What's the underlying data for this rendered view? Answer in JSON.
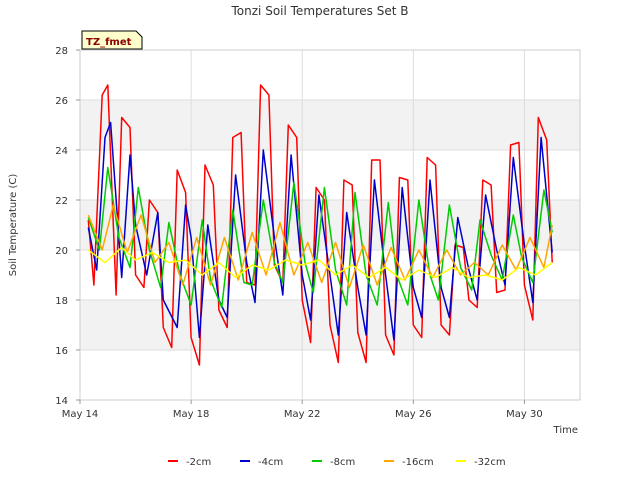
{
  "chart_data": {
    "type": "line",
    "title": "Tonzi Soil Temperatures Set B",
    "xlabel": "Time",
    "ylabel": "Soil Temperature (C)",
    "badge": "TZ_fmet",
    "x_ticks": [
      "May 14",
      "May 18",
      "May 22",
      "May 26",
      "May 30"
    ],
    "x_tick_days": [
      14,
      18,
      22,
      26,
      30
    ],
    "xlim": [
      14,
      32
    ],
    "ylim": [
      14,
      28
    ],
    "y_ticks": [
      14,
      16,
      18,
      20,
      22,
      24,
      26,
      28
    ],
    "y_tick_labels": [
      "14",
      "16",
      "18",
      "20",
      "22",
      "24",
      "26",
      "28"
    ],
    "grid": true,
    "legend_position": "bottom",
    "series": [
      {
        "name": "-2cm",
        "color": "#ff0000",
        "x": [
          14.3,
          14.5,
          14.8,
          15.0,
          15.3,
          15.5,
          15.8,
          16.0,
          16.3,
          16.5,
          16.8,
          17.0,
          17.3,
          17.5,
          17.8,
          18.0,
          18.3,
          18.5,
          18.8,
          19.0,
          19.3,
          19.5,
          19.8,
          20.0,
          20.3,
          20.5,
          20.8,
          21.0,
          21.3,
          21.5,
          21.8,
          22.0,
          22.3,
          22.5,
          22.8,
          23.0,
          23.3,
          23.5,
          23.8,
          24.0,
          24.3,
          24.5,
          24.8,
          25.0,
          25.3,
          25.5,
          25.8,
          26.0,
          26.3,
          26.5,
          26.8,
          27.0,
          27.3,
          27.5,
          27.8,
          28.0,
          28.3,
          28.5,
          28.8,
          29.0,
          29.3,
          29.5,
          29.8,
          30.0,
          30.3,
          30.5,
          30.8,
          31.0
        ],
        "y": [
          21.2,
          18.6,
          26.2,
          26.6,
          18.2,
          25.3,
          24.9,
          19.0,
          18.5,
          22.0,
          21.5,
          16.9,
          16.1,
          23.2,
          22.3,
          16.5,
          15.4,
          23.4,
          22.6,
          17.6,
          16.9,
          24.5,
          24.7,
          18.7,
          18.6,
          26.6,
          26.2,
          19.4,
          18.7,
          25.0,
          24.5,
          18.0,
          16.3,
          22.5,
          22.0,
          17.0,
          15.5,
          22.8,
          22.6,
          16.7,
          15.5,
          23.6,
          23.6,
          16.6,
          15.8,
          22.9,
          22.8,
          17.0,
          16.5,
          23.7,
          23.4,
          17.0,
          16.6,
          20.2,
          20.1,
          18.0,
          17.7,
          22.8,
          22.6,
          18.3,
          18.4,
          24.2,
          24.3,
          18.6,
          17.2,
          25.3,
          24.4,
          19.5
        ]
      },
      {
        "name": "-4cm",
        "color": "#0000cc",
        "x": [
          14.3,
          14.6,
          14.9,
          15.1,
          15.5,
          15.8,
          16.0,
          16.4,
          16.8,
          17.0,
          17.5,
          17.8,
          18.0,
          18.3,
          18.6,
          19.0,
          19.3,
          19.6,
          20.0,
          20.3,
          20.6,
          21.0,
          21.3,
          21.6,
          22.0,
          22.3,
          22.6,
          23.0,
          23.3,
          23.6,
          24.0,
          24.3,
          24.6,
          25.0,
          25.3,
          25.6,
          26.0,
          26.3,
          26.6,
          27.0,
          27.3,
          27.6,
          28.0,
          28.3,
          28.6,
          29.0,
          29.3,
          29.6,
          30.0,
          30.3,
          30.6,
          31.0
        ],
        "y": [
          20.9,
          19.2,
          24.5,
          25.1,
          18.9,
          23.8,
          21.0,
          19.0,
          21.5,
          18.0,
          16.9,
          21.8,
          20.5,
          16.5,
          21.0,
          18.0,
          17.3,
          23.0,
          19.5,
          17.9,
          24.0,
          20.5,
          18.2,
          23.8,
          19.0,
          17.2,
          22.2,
          19.0,
          16.6,
          21.5,
          18.5,
          16.6,
          22.8,
          19.0,
          16.4,
          22.5,
          18.5,
          17.3,
          22.8,
          18.5,
          17.3,
          21.3,
          19.2,
          18.0,
          22.2,
          20.0,
          18.6,
          23.7,
          20.2,
          17.9,
          24.5,
          19.9
        ]
      },
      {
        "name": "-8cm",
        "color": "#00cc00",
        "x": [
          14.3,
          14.7,
          15.0,
          15.4,
          15.8,
          16.1,
          16.5,
          16.9,
          17.2,
          17.6,
          18.0,
          18.4,
          18.7,
          19.1,
          19.5,
          19.9,
          20.2,
          20.6,
          21.0,
          21.3,
          21.7,
          22.1,
          22.4,
          22.8,
          23.2,
          23.6,
          23.9,
          24.3,
          24.7,
          25.1,
          25.4,
          25.8,
          26.2,
          26.6,
          26.9,
          27.3,
          27.7,
          28.1,
          28.4,
          28.8,
          29.2,
          29.6,
          29.9,
          30.3,
          30.7,
          31.0
        ],
        "y": [
          21.3,
          20.0,
          23.3,
          20.5,
          19.3,
          22.5,
          20.0,
          18.5,
          21.1,
          19.0,
          17.8,
          21.2,
          18.8,
          17.7,
          21.6,
          18.7,
          18.6,
          22.0,
          19.5,
          18.7,
          22.7,
          19.5,
          18.3,
          22.5,
          19.2,
          17.8,
          22.3,
          19.0,
          17.8,
          21.9,
          19.0,
          17.8,
          22.0,
          19.0,
          18.0,
          21.8,
          19.3,
          18.4,
          21.2,
          19.8,
          18.8,
          21.4,
          19.7,
          18.7,
          22.4,
          20.7
        ]
      },
      {
        "name": "-16cm",
        "color": "#ffa500",
        "x": [
          14.3,
          14.8,
          15.2,
          15.7,
          16.2,
          16.7,
          17.2,
          17.7,
          18.2,
          18.7,
          19.2,
          19.7,
          20.2,
          20.7,
          21.2,
          21.7,
          22.2,
          22.7,
          23.2,
          23.7,
          24.2,
          24.7,
          25.2,
          25.7,
          26.2,
          26.7,
          27.2,
          27.7,
          28.2,
          28.7,
          29.2,
          29.7,
          30.2,
          30.7,
          31.0
        ],
        "y": [
          21.4,
          20.0,
          21.8,
          19.9,
          21.4,
          19.5,
          20.3,
          18.6,
          20.5,
          18.6,
          20.5,
          18.8,
          20.7,
          19.0,
          21.1,
          19.0,
          20.3,
          18.7,
          20.3,
          18.5,
          20.2,
          18.6,
          20.1,
          18.8,
          20.0,
          18.9,
          20.0,
          19.0,
          19.5,
          19.0,
          20.2,
          19.2,
          20.5,
          19.3,
          21.0
        ]
      },
      {
        "name": "-32cm",
        "color": "#ffff00",
        "x": [
          14.3,
          14.9,
          15.5,
          16.0,
          16.6,
          17.2,
          17.8,
          18.4,
          19.0,
          19.6,
          20.2,
          20.8,
          21.4,
          22.0,
          22.6,
          23.2,
          23.8,
          24.4,
          25.0,
          25.6,
          26.2,
          26.8,
          27.4,
          28.0,
          28.6,
          29.2,
          29.8,
          30.4,
          31.0
        ],
        "y": [
          20.0,
          19.5,
          20.1,
          19.6,
          19.9,
          19.5,
          19.6,
          19.0,
          19.5,
          18.9,
          19.4,
          19.2,
          19.6,
          19.4,
          19.6,
          19.0,
          19.4,
          18.9,
          19.3,
          18.8,
          19.2,
          18.9,
          19.3,
          18.9,
          19.0,
          18.8,
          19.3,
          19.0,
          19.5
        ]
      }
    ]
  },
  "colors": {
    "band": "#f2f2f2",
    "grid": "#dddddd",
    "badge_fill": "#ffffcc"
  }
}
